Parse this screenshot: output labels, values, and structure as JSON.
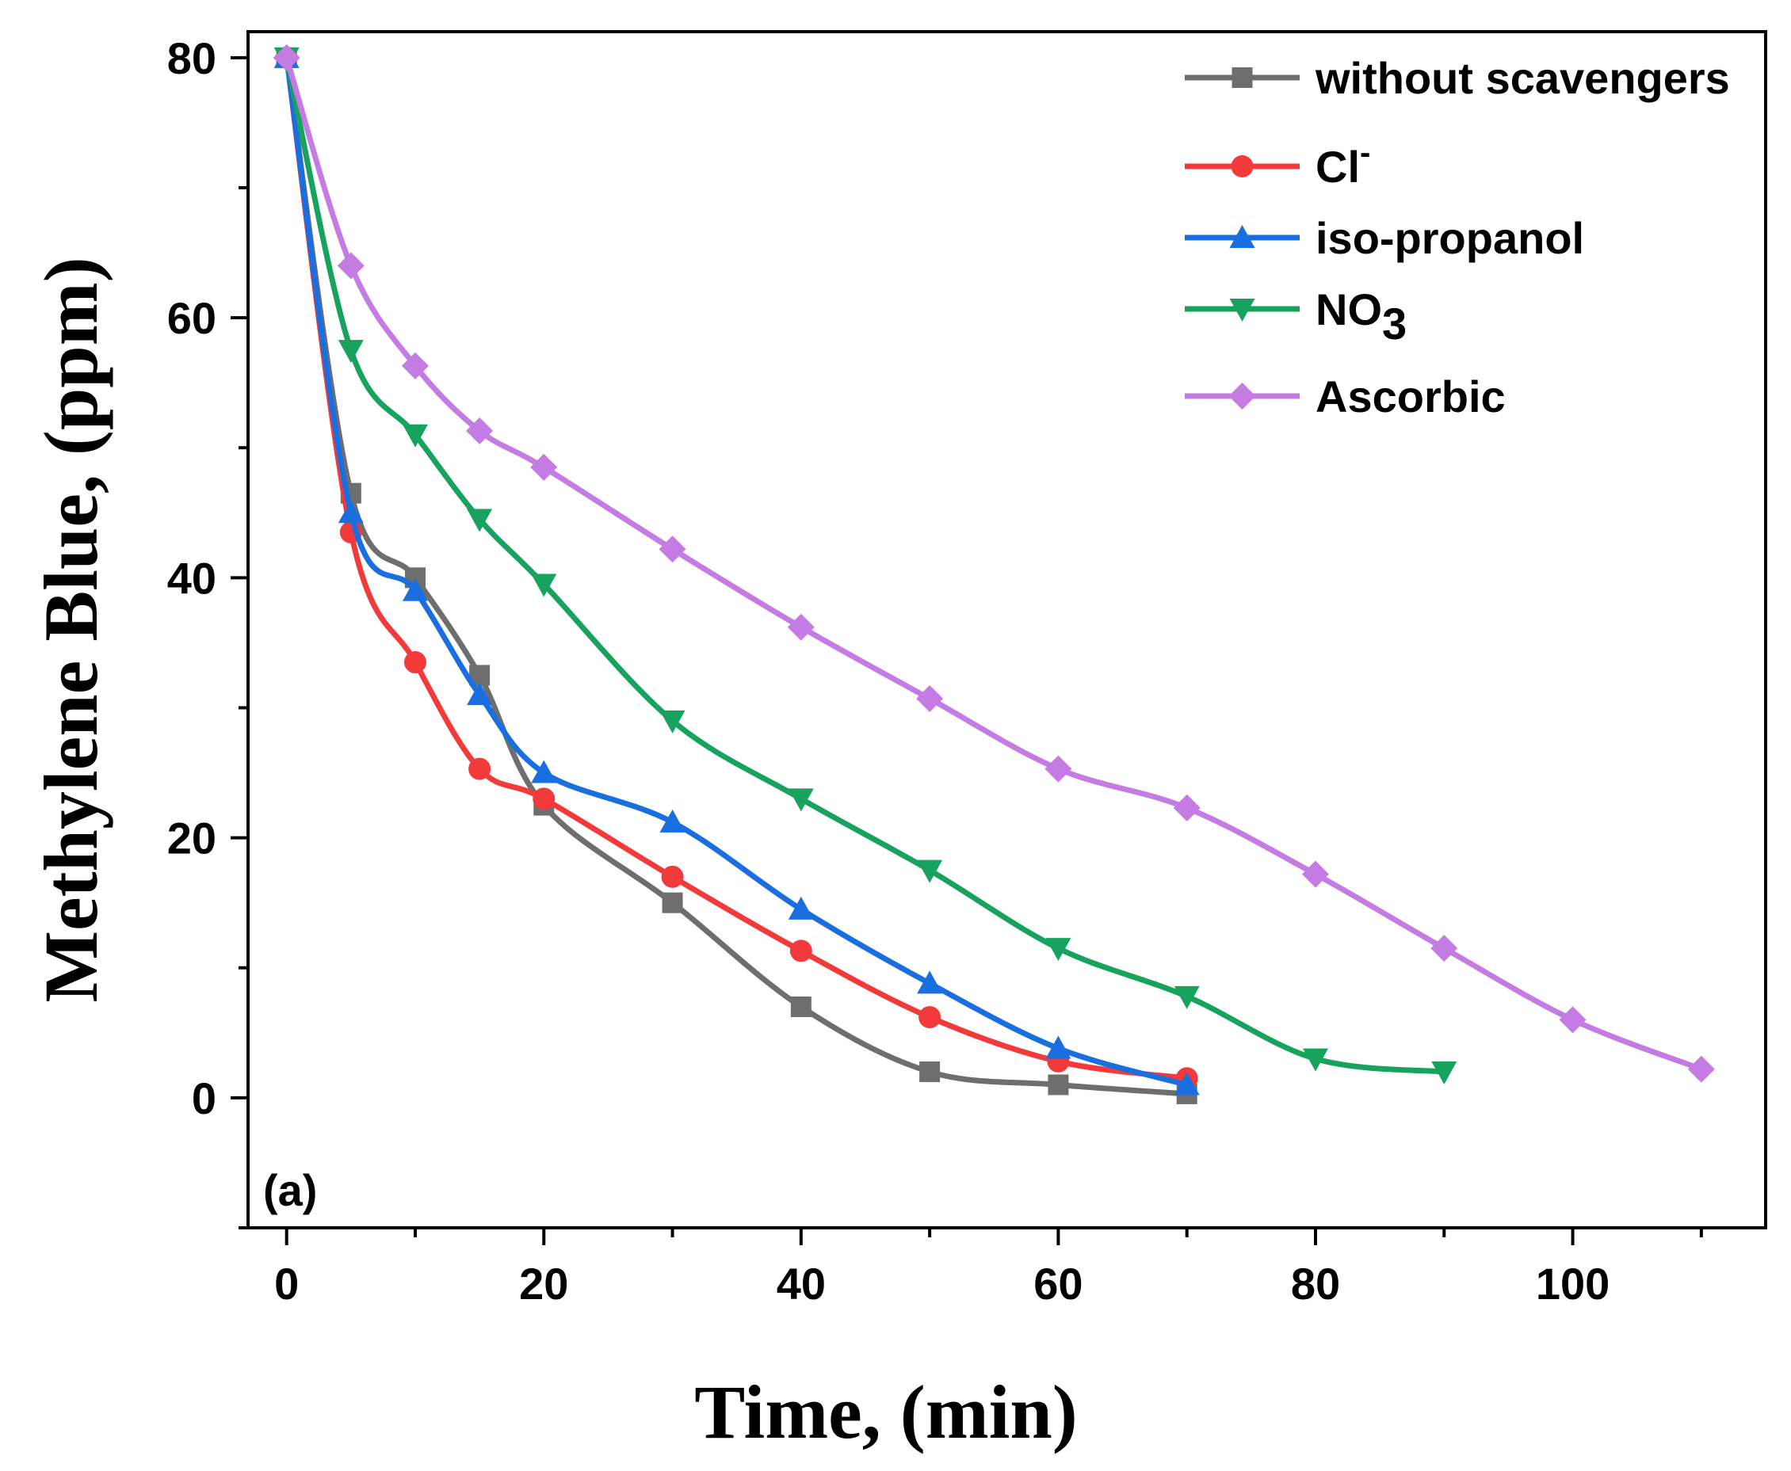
{
  "chart_data": {
    "type": "line",
    "title": "",
    "panel_label": "(a)",
    "xlabel": "Time, (min)",
    "ylabel": "Methylene Blue, (ppm)",
    "xlim": [
      -3,
      115
    ],
    "ylim": [
      -10,
      82
    ],
    "x_ticks": [
      0,
      20,
      40,
      60,
      80,
      100
    ],
    "y_ticks": [
      0,
      20,
      40,
      60,
      80
    ],
    "x_tick_labels": [
      "0",
      "20",
      "40",
      "60",
      "80",
      "100"
    ],
    "y_tick_labels": [
      "0",
      "20",
      "40",
      "60",
      "80"
    ],
    "legend_position": "top-right",
    "series": [
      {
        "name": "without scavengers",
        "label_main": "without scavengers",
        "label_sup": "",
        "label_sub": "",
        "color": "#6e6e6e",
        "marker": "square",
        "x": [
          0,
          5,
          10,
          15,
          20,
          30,
          40,
          50,
          60,
          70
        ],
        "y": [
          80,
          46.5,
          40,
          32.5,
          22.5,
          15,
          7,
          2,
          1,
          0.3
        ]
      },
      {
        "name": "Cl-",
        "label_main": "Cl",
        "label_sup": "-",
        "label_sub": "",
        "color": "#f23a3a",
        "marker": "circle",
        "x": [
          0,
          5,
          10,
          15,
          20,
          30,
          40,
          50,
          60,
          70
        ],
        "y": [
          80,
          43.5,
          33.5,
          25.3,
          23,
          17,
          11.3,
          6.2,
          2.8,
          1.5
        ]
      },
      {
        "name": "iso-propanol",
        "label_main": "iso-propanol",
        "label_sup": "",
        "label_sub": "",
        "color": "#1a6fe0",
        "marker": "triangle-up",
        "x": [
          0,
          5,
          10,
          15,
          20,
          30,
          40,
          50,
          60,
          70
        ],
        "y": [
          80,
          45,
          39,
          31,
          25,
          21.2,
          14.5,
          8.8,
          3.8,
          1
        ]
      },
      {
        "name": "NO3",
        "label_main": "NO",
        "label_sup": "",
        "label_sub": "3",
        "color": "#17a35e",
        "marker": "triangle-down",
        "x": [
          0,
          5,
          10,
          15,
          20,
          30,
          40,
          50,
          60,
          70,
          80,
          90
        ],
        "y": [
          80,
          57.5,
          51,
          44.5,
          39.5,
          29,
          23,
          17.5,
          11.5,
          7.8,
          3,
          2
        ]
      },
      {
        "name": "Ascorbic",
        "label_main": "Ascorbic",
        "label_sup": "",
        "label_sub": "",
        "color": "#c47be3",
        "marker": "diamond",
        "x": [
          0,
          5,
          10,
          15,
          20,
          30,
          40,
          50,
          60,
          70,
          80,
          90,
          100,
          110
        ],
        "y": [
          80,
          64,
          56.3,
          51.3,
          48.5,
          42.2,
          36.2,
          30.7,
          25.3,
          22.3,
          17.2,
          11.5,
          6,
          2.2
        ]
      }
    ]
  }
}
